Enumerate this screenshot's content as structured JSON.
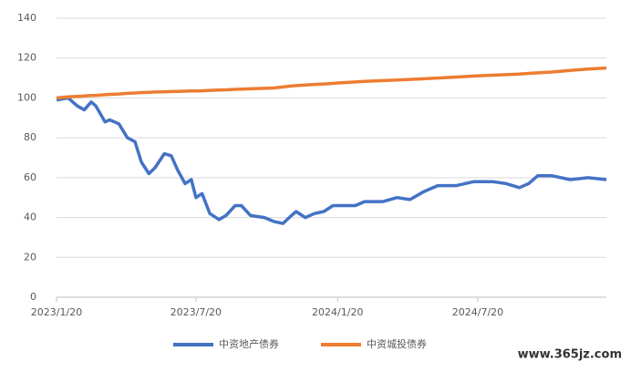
{
  "chart_data": {
    "type": "line",
    "x": [
      "2023/1/20",
      "2023/2/4",
      "2023/2/16",
      "2023/2/25",
      "2023/3/6",
      "2023/3/12",
      "2023/3/24",
      "2023/3/30",
      "2023/4/11",
      "2023/4/22",
      "2023/5/2",
      "2023/5/10",
      "2023/5/20",
      "2023/5/28",
      "2023/6/9",
      "2023/6/18",
      "2023/6/26",
      "2023/7/6",
      "2023/7/14",
      "2023/7/20",
      "2023/7/28",
      "2023/8/7",
      "2023/8/19",
      "2023/8/28",
      "2023/9/9",
      "2023/9/17",
      "2023/9/29",
      "2023/10/17",
      "2023/10/29",
      "2023/11/10",
      "2023/11/21",
      "2023/11/27",
      "2023/12/9",
      "2023/12/21",
      "2024/1/2",
      "2024/1/14",
      "2024/1/20",
      "2024/2/12",
      "2024/2/24",
      "2024/3/19",
      "2024/4/6",
      "2024/4/23",
      "2024/5/11",
      "2024/5/29",
      "2024/6/22",
      "2024/7/15",
      "2024/8/8",
      "2024/8/26",
      "2024/9/12",
      "2024/9/24",
      "2024/10/6",
      "2024/10/24",
      "2024/11/17",
      "2024/12/10",
      "2025/1/3"
    ],
    "series": [
      {
        "name": "中资地产债券",
        "color": "#4472c4",
        "values": [
          99,
          100,
          96,
          94,
          98,
          96,
          88,
          89,
          87,
          80,
          78,
          68,
          62,
          65,
          72,
          71,
          64,
          57,
          59,
          50,
          52,
          42,
          39,
          41,
          46,
          46,
          41,
          40,
          38,
          37,
          41,
          43,
          40,
          42,
          43,
          46,
          46,
          46,
          48,
          48,
          50,
          49,
          53,
          56,
          56,
          58,
          58,
          57,
          55,
          57,
          61,
          61,
          59,
          60,
          59
        ]
      },
      {
        "name": "中资城投债券",
        "color": "#ed7d31",
        "values": [
          100,
          100.5,
          100.8,
          101,
          101.2,
          101.3,
          101.6,
          101.8,
          102,
          102.3,
          102.5,
          102.7,
          102.8,
          103,
          103.1,
          103.2,
          103.3,
          103.4,
          103.5,
          103.5,
          103.6,
          103.8,
          104,
          104.1,
          104.3,
          104.4,
          104.6,
          104.8,
          105,
          105.5,
          106,
          106.2,
          106.5,
          106.8,
          107,
          107.3,
          107.5,
          108,
          108.3,
          108.7,
          109,
          109.3,
          109.6,
          110,
          110.5,
          111,
          111.4,
          111.7,
          112,
          112.3,
          112.6,
          113,
          113.8,
          114.5,
          115
        ]
      }
    ],
    "xlim": [
      "2023/1/20",
      "2025/1/3"
    ],
    "xticks": [
      "2023/1/20",
      "2023/7/20",
      "2024/1/20",
      "2024/7/20"
    ],
    "ylim": [
      0,
      140
    ],
    "yticks": [
      0,
      20,
      40,
      60,
      80,
      100,
      120,
      140
    ],
    "grid": true,
    "legend": "bottom",
    "watermark": "www.365jz.com"
  }
}
